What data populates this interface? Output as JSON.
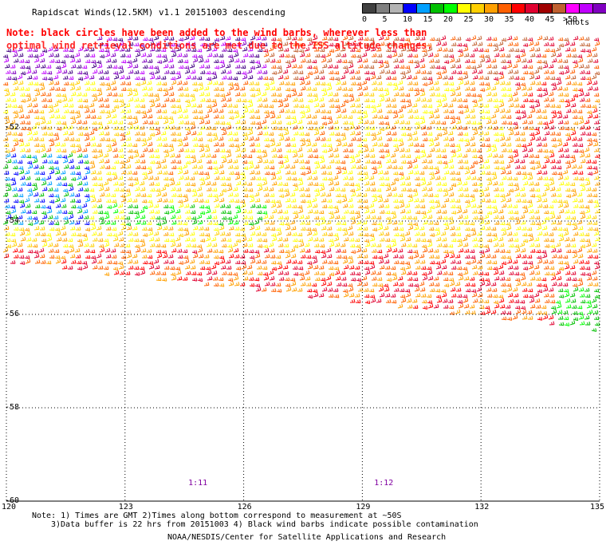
{
  "title": "Rapidscat Winds(12.5KM) v1.1 20151003 descending",
  "note_line1": "Note: black circles have been added to the wind barbs, wherever less than",
  "note_line2": "optimal wind retrieval conditions are met due to the ISS altitude changes.",
  "colorbar": {
    "labels": [
      "0",
      "5",
      "10",
      "15",
      "20",
      "25",
      "30",
      "35",
      "40",
      "45",
      ">50"
    ],
    "unit": "knots",
    "colors": [
      "#404040",
      "#808080",
      "#b4b4b4",
      "#0000ff",
      "#00a0ff",
      "#00c000",
      "#00ff00",
      "#ffff00",
      "#ffd000",
      "#ffa000",
      "#ff6000",
      "#ff0000",
      "#e00030",
      "#a00000",
      "#c06030",
      "#ff00ff",
      "#c000ff",
      "#8000c0",
      "#400080",
      "#200060"
    ]
  },
  "axes": {
    "lat_labels": [
      "-52",
      "-54",
      "-56",
      "-58",
      "-60"
    ],
    "lon_labels": [
      "120",
      "123",
      "126",
      "129",
      "132",
      "135"
    ],
    "lat_values": [
      -52,
      -54,
      -56,
      -58,
      -60
    ],
    "lon_values": [
      120,
      123,
      126,
      129,
      132,
      135
    ]
  },
  "time_labels": [
    {
      "text": "1:11",
      "lon": 124.8
    },
    {
      "text": "1:12",
      "lon": 129.5
    }
  ],
  "footnotes": {
    "line1": "Note: 1) Times are GMT 2)Times along bottom correspond to measurement at ~50S",
    "line2": "3)Data buffer is 22 hrs from 20151003 4) Black wind barbs indicate possible contamination",
    "credit": "NOAA/NESDIS/Center for Satellite Applications and Research"
  }
}
